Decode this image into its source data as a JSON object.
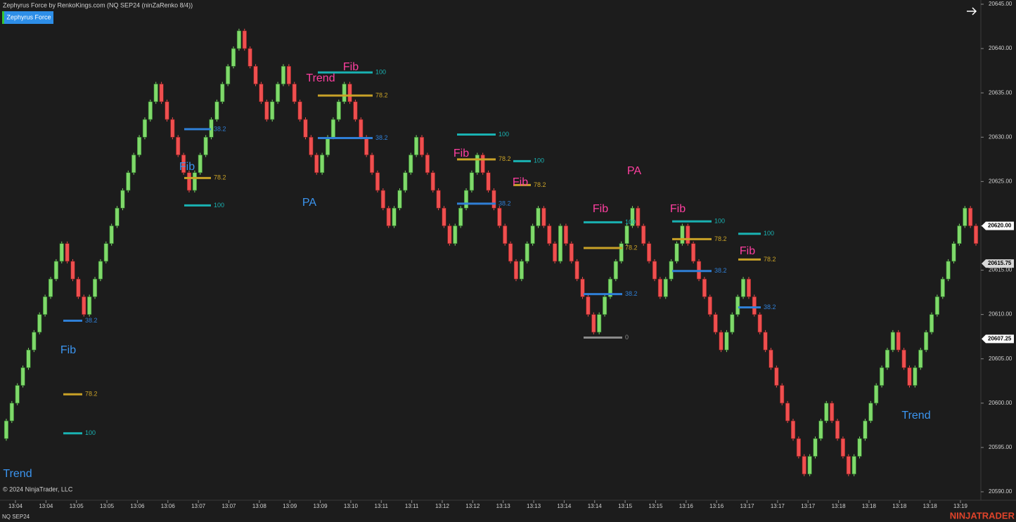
{
  "chart_data": {
    "type": "renko",
    "title": "Zephyrus Force by RenkoKings.com (NQ SEP24 (ninZaRenko 8/4))",
    "button_label": "Zephyrus Force",
    "copyright": "© 2024 NinjaTrader, LLC",
    "instrument": "NQ SEP24",
    "brand": "NINJATRADER",
    "ylim": [
      20590,
      20645
    ],
    "yticks": [
      {
        "value": 20590,
        "label": "20590.00"
      },
      {
        "value": 20595,
        "label": "20595.00"
      },
      {
        "value": 20600,
        "label": "20600.00"
      },
      {
        "value": 20605,
        "label": "20605.00"
      },
      {
        "value": 20610,
        "label": "20610.00"
      },
      {
        "value": 20615,
        "label": "20615.00"
      },
      {
        "value": 20620,
        "label": "20620.00"
      },
      {
        "value": 20625,
        "label": "20625.00"
      },
      {
        "value": 20630,
        "label": "20630.00"
      },
      {
        "value": 20635,
        "label": "20635.00"
      },
      {
        "value": 20640,
        "label": "20640.00"
      },
      {
        "value": 20645,
        "label": "20645.00"
      }
    ],
    "up_color": "#7fd96a",
    "down_color": "#ef4f4f",
    "first_open": 20596,
    "closes": [
      20598,
      20600,
      20602,
      20604,
      20606,
      20608,
      20610,
      20612,
      20614,
      20616,
      20618,
      20616,
      20614,
      20612,
      20610,
      20612,
      20614,
      20616,
      20618,
      20620,
      20622,
      20624,
      20626,
      20628,
      20630,
      20632,
      20634,
      20636,
      20634,
      20632,
      20630,
      20628,
      20626,
      20624,
      20626,
      20628,
      20630,
      20632,
      20634,
      20636,
      20638,
      20640,
      20642,
      20640,
      20638,
      20636,
      20634,
      20632,
      20634,
      20636,
      20638,
      20636,
      20634,
      20632,
      20630,
      20628,
      20626,
      20628,
      20630,
      20632,
      20634,
      20636,
      20634,
      20632,
      20630,
      20628,
      20626,
      20624,
      20622,
      20620,
      20622,
      20624,
      20626,
      20628,
      20630,
      20628,
      20626,
      20624,
      20622,
      20620,
      20618,
      20620,
      20622,
      20624,
      20626,
      20628,
      20626,
      20624,
      20622,
      20620,
      20618,
      20616,
      20614,
      20616,
      20618,
      20620,
      20622,
      20620,
      20618,
      20616,
      20620,
      20618,
      20616,
      20614,
      20612,
      20610,
      20608,
      20610,
      20612,
      20614,
      20616,
      20618,
      20620,
      20622,
      20620,
      20618,
      20616,
      20614,
      20612,
      20614,
      20616,
      20618,
      20620,
      20618,
      20616,
      20614,
      20612,
      20610,
      20608,
      20606,
      20608,
      20610,
      20612,
      20614,
      20612,
      20610,
      20608,
      20606,
      20604,
      20602,
      20600,
      20598,
      20596,
      20594,
      20592,
      20594,
      20596,
      20598,
      20600,
      20598,
      20596,
      20594,
      20592,
      20594,
      20596,
      20598,
      20600,
      20602,
      20604,
      20606,
      20608,
      20606,
      20604,
      20602,
      20604,
      20606,
      20608,
      20610,
      20612,
      20614,
      20616,
      20618,
      20620,
      20622,
      20620,
      20618
    ],
    "time_labels": [
      "13:04",
      "13:04",
      "13:05",
      "13:05",
      "13:06",
      "13:06",
      "13:07",
      "13:07",
      "13:08",
      "13:09",
      "13:09",
      "13:10",
      "13:11",
      "13:11",
      "13:12",
      "13:12",
      "13:13",
      "13:13",
      "13:14",
      "13:14",
      "13:15",
      "13:15",
      "13:16",
      "13:16",
      "13:17",
      "13:17",
      "13:17",
      "13:18",
      "13:18",
      "13:18",
      "13:18",
      "13:19"
    ],
    "price_markers": [
      {
        "value": 20620,
        "label": "20620.00",
        "color": "#ffffff"
      },
      {
        "value": 20615.75,
        "label": "20615.75",
        "color": "#d8d8d8"
      },
      {
        "value": 20607.25,
        "label": "20607.25",
        "color": "#ffffff"
      }
    ],
    "levels": [
      {
        "label": "100",
        "price": 20637.3,
        "color": "#19b2b2"
      },
      {
        "label": "78.2",
        "price": 20634.7,
        "color": "#c9a227"
      },
      {
        "label": "38.2",
        "price": 20629.9,
        "color": "#2f7fd6"
      },
      {
        "label": "38.2",
        "price": 20630.9,
        "color": "#2f7fd6"
      },
      {
        "label": "78.2",
        "price": 20625.4,
        "color": "#c9a227"
      },
      {
        "label": "100",
        "price": 20622.3,
        "color": "#19b2b2"
      },
      {
        "label": "38.2",
        "price": 20609.3,
        "color": "#2f7fd6"
      },
      {
        "label": "78.2",
        "price": 20601.0,
        "color": "#c9a227"
      },
      {
        "label": "100",
        "price": 20596.6,
        "color": "#19b2b2"
      },
      {
        "label": "100",
        "price": 20630.3,
        "color": "#19b2b2"
      },
      {
        "label": "78.2",
        "price": 20627.5,
        "color": "#c9a227"
      },
      {
        "label": "38.2",
        "price": 20622.5,
        "color": "#2f7fd6"
      },
      {
        "label": "100",
        "price": 20627.3,
        "color": "#19b2b2"
      },
      {
        "label": "78.2",
        "price": 20624.6,
        "color": "#c9a227"
      },
      {
        "label": "100",
        "price": 20620.4,
        "color": "#19b2b2"
      },
      {
        "label": "78.2",
        "price": 20617.5,
        "color": "#c9a227"
      },
      {
        "label": "38.2",
        "price": 20612.3,
        "color": "#2f7fd6"
      },
      {
        "label": "0",
        "price": 20607.4,
        "color": "#8a8a8a"
      },
      {
        "label": "100",
        "price": 20620.5,
        "color": "#19b2b2"
      },
      {
        "label": "78.2",
        "price": 20618.5,
        "color": "#c9a227"
      },
      {
        "label": "38.2",
        "price": 20614.9,
        "color": "#2f7fd6"
      },
      {
        "label": "100",
        "price": 20619.1,
        "color": "#19b2b2"
      },
      {
        "label": "78.2",
        "price": 20616.2,
        "color": "#c9a227"
      },
      {
        "label": "38.2",
        "price": 20610.8,
        "color": "#2f7fd6"
      }
    ],
    "annotations": [
      {
        "text": "Trend",
        "color": "#ff3fa0"
      },
      {
        "text": "Fib",
        "color": "#ff3fa0"
      },
      {
        "text": "Fib",
        "color": "#3b95f0"
      },
      {
        "text": "PA",
        "color": "#3b95f0"
      },
      {
        "text": "Fib",
        "color": "#3b95f0"
      },
      {
        "text": "Trend",
        "color": "#3b95f0"
      },
      {
        "text": "Fib",
        "color": "#ff3fa0"
      },
      {
        "text": "Fib",
        "color": "#ff3fa0"
      },
      {
        "text": "Fib",
        "color": "#ff3fa0"
      },
      {
        "text": "PA",
        "color": "#ff3fa0"
      },
      {
        "text": "Fib",
        "color": "#ff3fa0"
      },
      {
        "text": "Fib",
        "color": "#ff3fa0"
      },
      {
        "text": "Trend",
        "color": "#3b95f0"
      }
    ]
  }
}
